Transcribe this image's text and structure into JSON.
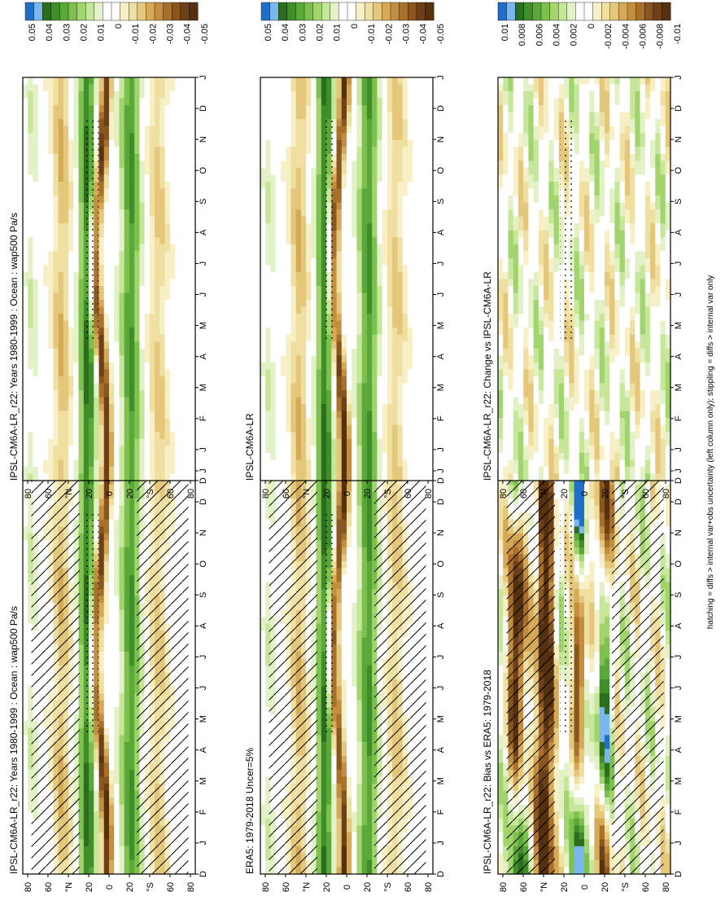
{
  "figure": {
    "footer": "hatching = diffs > internal var+obs uncertainty (left column only); stippling = diffs > internal var only"
  },
  "month_ticks": [
    "D",
    "J",
    "F",
    "M",
    "A",
    "M",
    "J",
    "J",
    "A",
    "S",
    "O",
    "N",
    "D",
    "J"
  ],
  "lat_ticks": [
    "80",
    "60",
    "°N",
    "20",
    "0",
    "20",
    "°S",
    "60",
    "80"
  ],
  "colorbars": {
    "main": {
      "labels": [
        "0.05",
        "0.04",
        "0.03",
        "0.02",
        "0.01",
        "0",
        "-0.01",
        "-0.02",
        "-0.03",
        "-0.04",
        "-0.05"
      ],
      "colors": [
        "#1f6fc8",
        "#7ab7ee",
        "#2b6e1f",
        "#3f8e2a",
        "#5aa83a",
        "#7cc04e",
        "#a2d46e",
        "#c6e69a",
        "#e3f1c7",
        "#ffffff",
        "#ffffff",
        "#f7efc6",
        "#efdfa1",
        "#e4c77a",
        "#d6a957",
        "#c48e3f",
        "#a9702c",
        "#8a5620",
        "#6d4019",
        "#55310f"
      ]
    },
    "diff": {
      "labels": [
        "0.01",
        "0.008",
        "0.006",
        "0.004",
        "0.002",
        "0",
        "-0.002",
        "-0.004",
        "-0.006",
        "-0.008",
        "-0.01"
      ],
      "colors": [
        "#1f6fc8",
        "#7ab7ee",
        "#2b6e1f",
        "#3f8e2a",
        "#5aa83a",
        "#7cc04e",
        "#a2d46e",
        "#c6e69a",
        "#e3f1c7",
        "#ffffff",
        "#ffffff",
        "#f7efc6",
        "#efdfa1",
        "#e4c77a",
        "#d6a957",
        "#c48e3f",
        "#a9702c",
        "#8a5620",
        "#6d4019",
        "#55310f"
      ]
    }
  },
  "chart_data": [
    {
      "type": "heatmap",
      "panel": "left-top",
      "title": "IPSL-CM6A-LR_r22: Years 1980-1999 : Ocean : wap500 Pa/s",
      "x_categories": [
        "D",
        "J",
        "F",
        "M",
        "A",
        "M",
        "J",
        "J",
        "A",
        "S",
        "O",
        "N",
        "D",
        "J"
      ],
      "y_ticks": [
        "80",
        "60",
        "°N",
        "20",
        "0",
        "20",
        "°S",
        "60",
        "80"
      ],
      "colorbar": "main",
      "ylim": [
        -90,
        90
      ],
      "hatched": true,
      "stippled": true
    },
    {
      "type": "heatmap",
      "panel": "right-top",
      "title": "IPSL-CM6A-LR_r22: Years 1980-1999 : Ocean : wap500 Pa/s",
      "x_categories": [
        "D",
        "J",
        "F",
        "M",
        "A",
        "M",
        "J",
        "J",
        "A",
        "S",
        "O",
        "N",
        "D",
        "J"
      ],
      "y_ticks": [
        "80",
        "60",
        "°N",
        "20",
        "0",
        "20",
        "°S",
        "60",
        "80"
      ],
      "colorbar": "main",
      "ylim": [
        -90,
        90
      ],
      "hatched": false,
      "stippled": true
    },
    {
      "type": "heatmap",
      "panel": "left-middle",
      "title": "ERA5: 1979-2018 Uncer=5%",
      "x_categories": [
        "D",
        "J",
        "F",
        "M",
        "A",
        "M",
        "J",
        "J",
        "A",
        "S",
        "O",
        "N",
        "D",
        "J"
      ],
      "y_ticks": [
        "80",
        "60",
        "°N",
        "20",
        "0",
        "20",
        "°S",
        "60",
        "80"
      ],
      "colorbar": "main",
      "ylim": [
        -90,
        90
      ],
      "hatched": true,
      "stippled": true
    },
    {
      "type": "heatmap",
      "panel": "right-middle",
      "title": "IPSL-CM6A-LR",
      "x_categories": [
        "D",
        "J",
        "F",
        "M",
        "A",
        "M",
        "J",
        "J",
        "A",
        "S",
        "O",
        "N",
        "D",
        "J"
      ],
      "y_ticks": [
        "80",
        "60",
        "°N",
        "20",
        "0",
        "20",
        "°S",
        "60",
        "80"
      ],
      "colorbar": "main",
      "ylim": [
        -90,
        90
      ],
      "hatched": false,
      "stippled": true
    },
    {
      "type": "heatmap",
      "panel": "left-bottom",
      "title": "IPSL-CM6A-LR_r22: Bias vs ERA5: 1979-2018",
      "x_categories": [
        "D",
        "J",
        "F",
        "M",
        "A",
        "M",
        "J",
        "J",
        "A",
        "S",
        "O",
        "N",
        "D",
        "J"
      ],
      "y_ticks": [
        "80",
        "60",
        "°N",
        "20",
        "0",
        "20",
        "°S",
        "60",
        "80"
      ],
      "colorbar": "diff",
      "ylim": [
        -90,
        90
      ],
      "hatched": true,
      "stippled": true
    },
    {
      "type": "heatmap",
      "panel": "right-bottom",
      "title": "IPSL-CM6A-LR_r22: Change vs IPSL-CM6A-LR",
      "x_categories": [
        "D",
        "J",
        "F",
        "M",
        "A",
        "M",
        "J",
        "J",
        "A",
        "S",
        "O",
        "N",
        "D",
        "J"
      ],
      "y_ticks": [
        "80",
        "60",
        "°N",
        "20",
        "0",
        "20",
        "°S",
        "60",
        "80"
      ],
      "colorbar": "diff",
      "ylim": [
        -90,
        90
      ],
      "hatched": false,
      "stippled": true
    }
  ]
}
